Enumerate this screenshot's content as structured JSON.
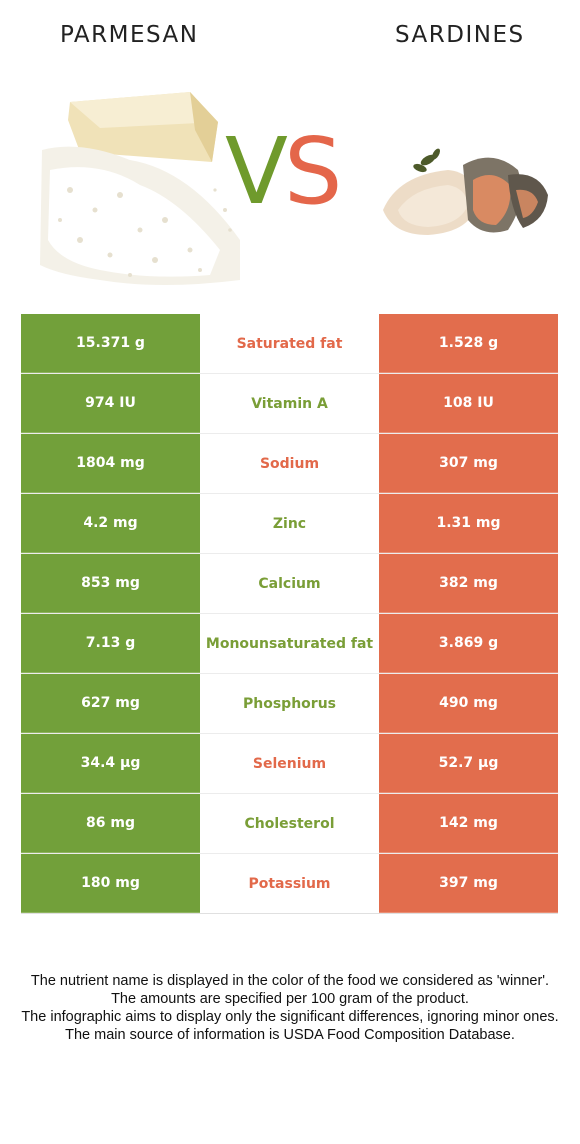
{
  "header": {
    "left_food": "PARMESAN",
    "right_food": "SARDINES",
    "vs_v": "V",
    "vs_s": "S"
  },
  "colors": {
    "left_winner": "#72a03a",
    "right_winner": "#e26d4d"
  },
  "images": {
    "left": "grated-parmesan-image",
    "right": "sardine-fillets-image"
  },
  "rows": [
    {
      "left": "15.371 g",
      "nutrient": "Saturated fat",
      "right": "1.528 g",
      "winner": "right"
    },
    {
      "left": "974 IU",
      "nutrient": "Vitamin A",
      "right": "108 IU",
      "winner": "left"
    },
    {
      "left": "1804 mg",
      "nutrient": "Sodium",
      "right": "307 mg",
      "winner": "right"
    },
    {
      "left": "4.2 mg",
      "nutrient": "Zinc",
      "right": "1.31 mg",
      "winner": "left"
    },
    {
      "left": "853 mg",
      "nutrient": "Calcium",
      "right": "382 mg",
      "winner": "left"
    },
    {
      "left": "7.13 g",
      "nutrient": "Monounsaturated fat",
      "right": "3.869 g",
      "winner": "left"
    },
    {
      "left": "627 mg",
      "nutrient": "Phosphorus",
      "right": "490 mg",
      "winner": "left"
    },
    {
      "left": "34.4 µg",
      "nutrient": "Selenium",
      "right": "52.7 µg",
      "winner": "right"
    },
    {
      "left": "86 mg",
      "nutrient": "Cholesterol",
      "right": "142 mg",
      "winner": "left"
    },
    {
      "left": "180 mg",
      "nutrient": "Potassium",
      "right": "397 mg",
      "winner": "right"
    }
  ],
  "footer": {
    "line1": "The nutrient name is displayed in the color of the food we considered as 'winner'.",
    "line2": "The amounts are specified per 100 gram of the product.",
    "line3": "The infographic aims to display only the significant differences, ignoring minor ones.",
    "line4": "The main source of information is USDA Food Composition Database."
  }
}
